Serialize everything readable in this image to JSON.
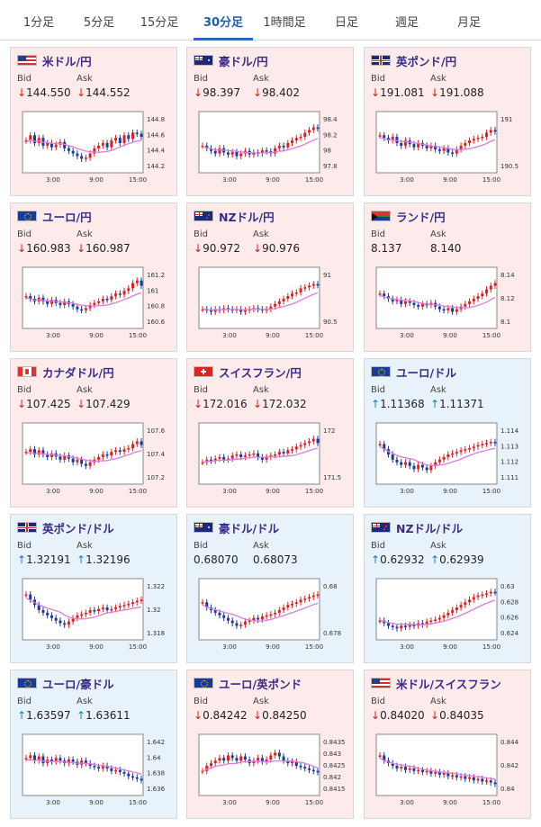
{
  "tabs": [
    {
      "label": "1分足",
      "active": false
    },
    {
      "label": "5分足",
      "active": false
    },
    {
      "label": "15分足",
      "active": false
    },
    {
      "label": "30分足",
      "active": true
    },
    {
      "label": "1時間足",
      "active": false
    },
    {
      "label": "日足",
      "active": false
    },
    {
      "label": "週足",
      "active": false
    },
    {
      "label": "月足",
      "active": false
    }
  ],
  "labels": {
    "bid": "Bid",
    "ask": "Ask"
  },
  "x_ticks": [
    "3:00",
    "9:00",
    "15:00"
  ],
  "colors": {
    "up": "#e02020",
    "down": "#1a3a9a",
    "ma": "#e07ae0",
    "ma2": "#8ad0f0",
    "pink_bg": "#fcebea",
    "blue_bg": "#e8f2fb"
  },
  "pairs": [
    {
      "name": "米ドル/円",
      "flag": "us",
      "theme": "pink",
      "bid_dir": "down",
      "bid": "144.550",
      "ask_dir": "down",
      "ask": "144.552",
      "y_ticks": [
        "144.8",
        "144.6",
        "144.4",
        "144.2"
      ],
      "chart_data": {
        "type": "candlestick",
        "y_ticks": [
          144.8,
          144.6,
          144.4,
          144.2
        ],
        "shape": [
          0.55,
          0.65,
          0.5,
          0.6,
          0.45,
          0.5,
          0.42,
          0.47,
          0.52,
          0.4,
          0.35,
          0.3,
          0.25,
          0.2,
          0.22,
          0.3,
          0.4,
          0.45,
          0.5,
          0.42,
          0.55,
          0.6,
          0.5,
          0.65,
          0.58,
          0.7,
          0.68,
          0.62
        ]
      }
    },
    {
      "name": "豪ドル/円",
      "flag": "au",
      "theme": "pink",
      "bid_dir": "down",
      "bid": "98.397",
      "ask_dir": "down",
      "ask": "98.402",
      "y_ticks": [
        "98.4",
        "98.2",
        "98",
        "97.8"
      ],
      "chart_data": {
        "type": "candlestick",
        "y_ticks": [
          98.4,
          98.2,
          98,
          97.8
        ],
        "shape": [
          0.45,
          0.4,
          0.35,
          0.3,
          0.4,
          0.32,
          0.28,
          0.33,
          0.25,
          0.3,
          0.35,
          0.28,
          0.32,
          0.3,
          0.36,
          0.34,
          0.3,
          0.4,
          0.45,
          0.42,
          0.5,
          0.55,
          0.6,
          0.62,
          0.7,
          0.75,
          0.8,
          0.78
        ]
      }
    },
    {
      "name": "英ポンド/円",
      "flag": "gb",
      "theme": "pink",
      "bid_dir": "down",
      "bid": "191.081",
      "ask_dir": "down",
      "ask": "191.088",
      "y_ticks": [
        "191",
        "190.5"
      ],
      "chart_data": {
        "type": "candlestick",
        "y_ticks": [
          191,
          190.5
        ],
        "shape": [
          0.65,
          0.6,
          0.55,
          0.62,
          0.5,
          0.45,
          0.55,
          0.48,
          0.42,
          0.5,
          0.45,
          0.4,
          0.45,
          0.38,
          0.35,
          0.4,
          0.32,
          0.3,
          0.38,
          0.45,
          0.5,
          0.55,
          0.58,
          0.6,
          0.62,
          0.7,
          0.75,
          0.72
        ]
      }
    },
    {
      "name": "ユーロ/円",
      "flag": "eu",
      "theme": "pink",
      "bid_dir": "down",
      "bid": "160.983",
      "ask_dir": "down",
      "ask": "160.987",
      "y_ticks": [
        "161.2",
        "161",
        "160.8",
        "160.6"
      ],
      "chart_data": {
        "type": "candlestick",
        "y_ticks": [
          161.2,
          161,
          160.8,
          160.6
        ],
        "shape": [
          0.55,
          0.5,
          0.45,
          0.52,
          0.45,
          0.4,
          0.48,
          0.42,
          0.38,
          0.45,
          0.4,
          0.35,
          0.3,
          0.28,
          0.32,
          0.38,
          0.42,
          0.45,
          0.5,
          0.48,
          0.55,
          0.6,
          0.58,
          0.65,
          0.7,
          0.8,
          0.85,
          0.75
        ]
      }
    },
    {
      "name": "NZドル/円",
      "flag": "nz",
      "theme": "pink",
      "bid_dir": "down",
      "bid": "90.972",
      "ask_dir": "down",
      "ask": "90.976",
      "y_ticks": [
        "91",
        "90.5"
      ],
      "chart_data": {
        "type": "candlestick",
        "y_ticks": [
          91,
          90.5
        ],
        "shape": [
          0.3,
          0.28,
          0.25,
          0.3,
          0.28,
          0.32,
          0.3,
          0.28,
          0.3,
          0.25,
          0.28,
          0.3,
          0.32,
          0.3,
          0.28,
          0.3,
          0.35,
          0.4,
          0.45,
          0.5,
          0.55,
          0.6,
          0.62,
          0.7,
          0.72,
          0.75,
          0.78,
          0.76
        ]
      }
    },
    {
      "name": "ランド/円",
      "flag": "za",
      "theme": "pink",
      "bid_dir": "",
      "bid": "8.137",
      "ask_dir": "",
      "ask": "8.140",
      "y_ticks": [
        "8.14",
        "8.12",
        "8.1"
      ],
      "chart_data": {
        "type": "candlestick",
        "y_ticks": [
          8.14,
          8.12,
          8.1
        ],
        "shape": [
          0.6,
          0.55,
          0.5,
          0.45,
          0.48,
          0.4,
          0.45,
          0.42,
          0.38,
          0.35,
          0.4,
          0.38,
          0.42,
          0.35,
          0.3,
          0.28,
          0.32,
          0.25,
          0.3,
          0.35,
          0.4,
          0.45,
          0.5,
          0.55,
          0.6,
          0.68,
          0.75,
          0.8
        ]
      }
    },
    {
      "name": "カナダドル/円",
      "flag": "ca",
      "theme": "pink",
      "bid_dir": "down",
      "bid": "107.425",
      "ask_dir": "down",
      "ask": "107.429",
      "y_ticks": [
        "107.6",
        "107.4",
        "107.2"
      ],
      "chart_data": {
        "type": "candlestick",
        "y_ticks": [
          107.6,
          107.4,
          107.2
        ],
        "shape": [
          0.55,
          0.6,
          0.5,
          0.58,
          0.5,
          0.45,
          0.52,
          0.46,
          0.4,
          0.48,
          0.42,
          0.35,
          0.4,
          0.32,
          0.28,
          0.35,
          0.4,
          0.45,
          0.5,
          0.48,
          0.55,
          0.58,
          0.55,
          0.6,
          0.62,
          0.7,
          0.75,
          0.68
        ]
      }
    },
    {
      "name": "スイスフラン/円",
      "flag": "ch",
      "theme": "pink",
      "bid_dir": "down",
      "bid": "172.016",
      "ask_dir": "down",
      "ask": "172.032",
      "y_ticks": [
        "172",
        "171.5"
      ],
      "chart_data": {
        "type": "candlestick",
        "y_ticks": [
          172,
          171.5
        ],
        "shape": [
          0.35,
          0.4,
          0.38,
          0.42,
          0.45,
          0.4,
          0.42,
          0.48,
          0.5,
          0.45,
          0.48,
          0.5,
          0.52,
          0.45,
          0.4,
          0.45,
          0.48,
          0.5,
          0.55,
          0.52,
          0.58,
          0.6,
          0.65,
          0.68,
          0.72,
          0.75,
          0.8,
          0.72
        ]
      }
    },
    {
      "name": "ユーロ/ドル",
      "flag": "eu",
      "theme": "blue",
      "bid_dir": "up",
      "bid": "1.11368",
      "ask_dir": "up",
      "ask": "1.11371",
      "y_ticks": [
        "1.114",
        "1.113",
        "1.112",
        "1.111"
      ],
      "chart_data": {
        "type": "candlestick",
        "y_ticks": [
          1.114,
          1.113,
          1.112,
          1.111
        ],
        "shape": [
          0.7,
          0.6,
          0.5,
          0.4,
          0.35,
          0.3,
          0.35,
          0.28,
          0.22,
          0.3,
          0.25,
          0.2,
          0.28,
          0.35,
          0.4,
          0.45,
          0.5,
          0.52,
          0.55,
          0.58,
          0.6,
          0.62,
          0.65,
          0.68,
          0.7,
          0.72,
          0.74,
          0.72
        ]
      }
    },
    {
      "name": "英ポンド/ドル",
      "flag": "gb",
      "theme": "blue",
      "bid_dir": "up",
      "bid": "1.32191",
      "ask_dir": "up",
      "ask": "1.32196",
      "y_ticks": [
        "1.322",
        "1.32",
        "1.318"
      ],
      "chart_data": {
        "type": "candlestick",
        "y_ticks": [
          1.322,
          1.32,
          1.318
        ],
        "shape": [
          0.8,
          0.7,
          0.6,
          0.5,
          0.45,
          0.4,
          0.35,
          0.3,
          0.25,
          0.22,
          0.28,
          0.35,
          0.4,
          0.42,
          0.45,
          0.5,
          0.48,
          0.52,
          0.55,
          0.5,
          0.52,
          0.55,
          0.58,
          0.6,
          0.62,
          0.65,
          0.68,
          0.7
        ]
      }
    },
    {
      "name": "豪ドル/ドル",
      "flag": "au",
      "theme": "blue",
      "bid_dir": "",
      "bid": "0.68070",
      "ask_dir": "",
      "ask": "0.68073",
      "y_ticks": [
        "0.68",
        "0.678"
      ],
      "chart_data": {
        "type": "candlestick",
        "y_ticks": [
          0.68,
          0.678
        ],
        "shape": [
          0.65,
          0.55,
          0.5,
          0.45,
          0.4,
          0.35,
          0.3,
          0.25,
          0.2,
          0.22,
          0.28,
          0.3,
          0.35,
          0.32,
          0.38,
          0.4,
          0.42,
          0.45,
          0.5,
          0.55,
          0.6,
          0.62,
          0.65,
          0.7,
          0.72,
          0.75,
          0.78,
          0.8
        ]
      }
    },
    {
      "name": "NZドル/ドル",
      "flag": "nz",
      "theme": "blue",
      "bid_dir": "up",
      "bid": "0.62932",
      "ask_dir": "up",
      "ask": "0.62939",
      "y_ticks": [
        "0.63",
        "0.628",
        "0.626",
        "0.624"
      ],
      "chart_data": {
        "type": "candlestick",
        "y_ticks": [
          0.63,
          0.628,
          0.626,
          0.624
        ],
        "shape": [
          0.3,
          0.25,
          0.2,
          0.18,
          0.15,
          0.2,
          0.18,
          0.22,
          0.2,
          0.25,
          0.22,
          0.28,
          0.3,
          0.32,
          0.35,
          0.4,
          0.45,
          0.5,
          0.55,
          0.6,
          0.65,
          0.7,
          0.75,
          0.78,
          0.8,
          0.82,
          0.85,
          0.84
        ]
      }
    },
    {
      "name": "ユーロ/豪ドル",
      "flag": "eu",
      "theme": "blue",
      "bid_dir": "up",
      "bid": "1.63597",
      "ask_dir": "up",
      "ask": "1.63611",
      "y_ticks": [
        "1.642",
        "1.64",
        "1.638",
        "1.636"
      ],
      "chart_data": {
        "type": "candlestick",
        "y_ticks": [
          1.642,
          1.64,
          1.638,
          1.636
        ],
        "shape": [
          0.65,
          0.7,
          0.6,
          0.68,
          0.55,
          0.62,
          0.58,
          0.65,
          0.6,
          0.55,
          0.62,
          0.58,
          0.52,
          0.6,
          0.55,
          0.5,
          0.48,
          0.45,
          0.5,
          0.45,
          0.4,
          0.42,
          0.38,
          0.35,
          0.3,
          0.28,
          0.25,
          0.22
        ]
      }
    },
    {
      "name": "ユーロ/英ポンド",
      "flag": "eu",
      "theme": "pink",
      "bid_dir": "down",
      "bid": "0.84242",
      "ask_dir": "down",
      "ask": "0.84250",
      "y_ticks": [
        "0.8435",
        "0.843",
        "0.8425",
        "0.842",
        "0.8415"
      ],
      "chart_data": {
        "type": "candlestick",
        "y_ticks": [
          0.8435,
          0.843,
          0.8425,
          0.842,
          0.8415
        ],
        "shape": [
          0.4,
          0.5,
          0.55,
          0.6,
          0.65,
          0.6,
          0.7,
          0.65,
          0.6,
          0.68,
          0.62,
          0.55,
          0.6,
          0.65,
          0.58,
          0.62,
          0.7,
          0.75,
          0.68,
          0.6,
          0.55,
          0.58,
          0.5,
          0.48,
          0.45,
          0.42,
          0.4,
          0.38
        ]
      }
    },
    {
      "name": "米ドル/スイスフラン",
      "flag": "us",
      "theme": "pink",
      "bid_dir": "down",
      "bid": "0.84020",
      "ask_dir": "down",
      "ask": "0.84035",
      "y_ticks": [
        "0.844",
        "0.842",
        "0.84"
      ],
      "chart_data": {
        "type": "candlestick",
        "y_ticks": [
          0.844,
          0.842,
          0.84
        ],
        "shape": [
          0.7,
          0.6,
          0.55,
          0.5,
          0.45,
          0.48,
          0.42,
          0.45,
          0.4,
          0.42,
          0.38,
          0.4,
          0.35,
          0.38,
          0.33,
          0.36,
          0.3,
          0.32,
          0.28,
          0.3,
          0.25,
          0.28,
          0.22,
          0.25,
          0.2,
          0.22,
          0.18,
          0.15
        ]
      }
    }
  ]
}
